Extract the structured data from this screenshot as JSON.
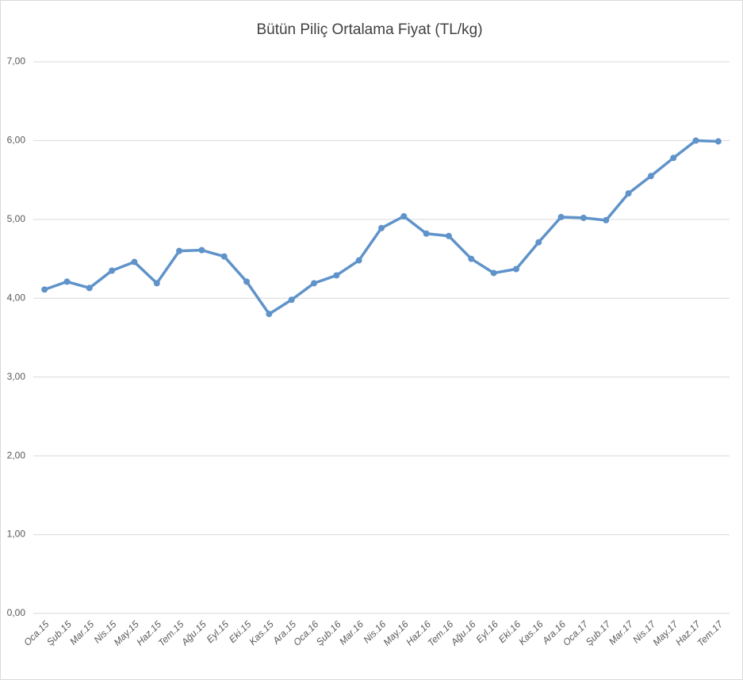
{
  "chart_data": {
    "type": "line",
    "title": "Bütün Piliç Ortalama Fiyat (TL/kg)",
    "categories": [
      "Oca.15",
      "Şub.15",
      "Mar.15",
      "Nis.15",
      "May.15",
      "Haz.15",
      "Tem.15",
      "Ağu.15",
      "Eyl.15",
      "Eki.15",
      "Kas.15",
      "Ara.15",
      "Oca.16",
      "Şub.16",
      "Mar.16",
      "Nis.16",
      "May.16",
      "Haz.16",
      "Tem.16",
      "Ağu.16",
      "Eyl.16",
      "Eki.16",
      "Kas.16",
      "Ara.16",
      "Oca.17",
      "Şub.17",
      "Mar.17",
      "Nis.17",
      "May.17",
      "Haz.17",
      "Tem.17"
    ],
    "values": [
      4.11,
      4.21,
      4.13,
      4.35,
      4.46,
      4.19,
      4.6,
      4.61,
      4.53,
      4.21,
      3.8,
      3.98,
      4.19,
      4.29,
      4.48,
      4.89,
      5.04,
      4.82,
      4.79,
      4.5,
      4.32,
      4.37,
      4.71,
      5.03,
      5.02,
      4.99,
      5.33,
      5.55,
      5.78,
      6.0,
      5.99
    ],
    "color": "#5f93c9",
    "ylim": [
      0,
      7
    ],
    "yticks": [
      {
        "value": 0,
        "label": "0,00"
      },
      {
        "value": 1,
        "label": "1,00"
      },
      {
        "value": 2,
        "label": "2,00"
      },
      {
        "value": 3,
        "label": "3,00"
      },
      {
        "value": 4,
        "label": "4,00"
      },
      {
        "value": 5,
        "label": "5,00"
      },
      {
        "value": 6,
        "label": "6,00"
      },
      {
        "value": 7,
        "label": "7,00"
      }
    ],
    "grid": true
  }
}
